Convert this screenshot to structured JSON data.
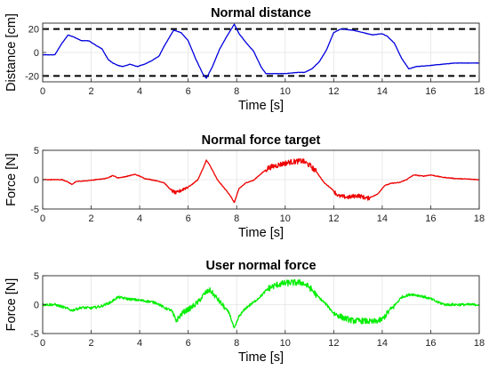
{
  "chart_data": [
    {
      "type": "line",
      "title": "Normal distance",
      "xlabel": "Time [s]",
      "ylabel": "Distance [cm]",
      "xlim": [
        0,
        18
      ],
      "ylim": [
        -25,
        25
      ],
      "xticks": [
        0,
        2,
        4,
        6,
        8,
        10,
        12,
        14,
        16,
        18
      ],
      "yticks": [
        -20,
        0,
        20
      ],
      "grid": true,
      "reference_lines": [
        20,
        -20
      ],
      "color": "#0000dd",
      "noise": 0.15,
      "noisy_ranges": [],
      "series": [
        {
          "x": [
            0,
            0.5,
            0.8,
            1.05,
            1.3,
            1.6,
            1.9,
            2.2,
            2.45,
            2.7,
            2.9,
            3.1,
            3.3,
            3.6,
            3.9,
            4.2,
            4.5,
            4.8,
            5.0,
            5.2,
            5.4,
            5.7,
            6.0,
            6.3,
            6.6,
            6.75,
            7.0,
            7.3,
            7.6,
            7.9,
            8.1,
            8.4,
            8.7,
            9.0,
            9.2,
            9.5,
            10.0,
            10.5,
            10.8,
            11.1,
            11.4,
            11.7,
            12.0,
            12.3,
            12.8,
            13.2,
            13.6,
            14.0,
            14.2,
            14.5,
            14.8,
            15.1,
            15.4,
            16.0,
            16.5,
            17.0,
            18.0
          ],
          "y": [
            -2,
            -2,
            8,
            15,
            13,
            10,
            10,
            6,
            3,
            -6,
            -9,
            -11,
            -12,
            -10,
            -12,
            -10,
            -7,
            -3,
            5,
            12,
            19,
            17,
            10,
            -5,
            -18,
            -22,
            -12,
            3,
            14,
            24,
            16,
            8,
            1,
            -12,
            -18,
            -18,
            -18,
            -17,
            -17,
            -14,
            -8,
            2,
            17,
            20,
            19,
            17,
            15,
            16,
            14,
            8,
            -5,
            -14,
            -12,
            -11,
            -10,
            -9,
            -9
          ]
        }
      ]
    },
    {
      "type": "line",
      "title": "Normal force target",
      "xlabel": "Time [s]",
      "ylabel": "Force [N]",
      "xlim": [
        0,
        18
      ],
      "ylim": [
        -5,
        5
      ],
      "xticks": [
        0,
        2,
        4,
        6,
        8,
        10,
        12,
        14,
        16,
        18
      ],
      "yticks": [
        -5,
        0,
        5
      ],
      "grid": true,
      "reference_lines": [],
      "color": "#ee0000",
      "noise": 0.06,
      "noisy_ranges": [
        [
          5.3,
          6.0,
          0.3
        ],
        [
          9.2,
          11.3,
          0.45
        ],
        [
          12.0,
          13.5,
          0.35
        ]
      ],
      "series": [
        {
          "x": [
            0,
            0.8,
            1.0,
            1.2,
            1.4,
            1.8,
            2.2,
            2.6,
            2.9,
            3.1,
            3.4,
            3.8,
            4.0,
            4.2,
            4.6,
            5.0,
            5.3,
            5.5,
            5.8,
            6.1,
            6.4,
            6.6,
            6.75,
            6.9,
            7.2,
            7.5,
            7.7,
            7.9,
            8.1,
            8.4,
            8.7,
            9.0,
            9.3,
            9.7,
            10.2,
            10.7,
            11.0,
            11.3,
            11.6,
            11.9,
            12.2,
            12.6,
            13.0,
            13.4,
            13.8,
            14.1,
            14.4,
            14.7,
            15.0,
            15.3,
            15.7,
            16.0,
            16.5,
            17.0,
            18.0
          ],
          "y": [
            0,
            0,
            -0.3,
            -0.8,
            -0.3,
            -0.2,
            0,
            0.2,
            0.7,
            0.3,
            0.5,
            0.9,
            0.6,
            0.2,
            -0.1,
            -0.5,
            -1.8,
            -2.3,
            -1.6,
            -1.0,
            0,
            1.8,
            3.3,
            2.4,
            0,
            -1.5,
            -2.5,
            -3.9,
            -1.5,
            -0.5,
            -0.1,
            1.0,
            2.0,
            2.5,
            3.0,
            3.2,
            2.5,
            1.3,
            -0.5,
            -1.5,
            -2.8,
            -3.0,
            -2.7,
            -3.2,
            -2.5,
            -1.0,
            -0.6,
            -0.5,
            0,
            0.8,
            0.6,
            0.8,
            0.4,
            0.2,
            0
          ]
        }
      ]
    },
    {
      "type": "line",
      "title": "User normal force",
      "xlabel": "Time [s]",
      "ylabel": "Force [N]",
      "xlim": [
        0,
        18
      ],
      "ylim": [
        -5,
        5
      ],
      "xticks": [
        0,
        2,
        4,
        6,
        8,
        10,
        12,
        14,
        16,
        18
      ],
      "yticks": [
        -5,
        0,
        5
      ],
      "grid": true,
      "reference_lines": [],
      "color": "#00ee00",
      "noise": 0.22,
      "noisy_ranges": [
        [
          5.3,
          7.5,
          0.45
        ],
        [
          9.2,
          11.3,
          0.55
        ],
        [
          12.0,
          14.5,
          0.5
        ]
      ],
      "series": [
        {
          "x": [
            0,
            0.5,
            0.9,
            1.2,
            1.6,
            2.0,
            2.4,
            2.8,
            3.1,
            3.5,
            3.9,
            4.3,
            4.7,
            5.0,
            5.3,
            5.5,
            5.8,
            6.1,
            6.4,
            6.7,
            6.9,
            7.1,
            7.4,
            7.7,
            7.9,
            8.1,
            8.4,
            8.7,
            9.0,
            9.3,
            9.7,
            10.2,
            10.7,
            11.0,
            11.3,
            11.7,
            12.0,
            12.4,
            12.8,
            13.2,
            13.6,
            14.0,
            14.2,
            14.5,
            14.8,
            15.2,
            15.6,
            16.0,
            16.3,
            16.6,
            17.0,
            18.0
          ],
          "y": [
            0,
            0,
            -0.5,
            -1.0,
            -0.5,
            -0.6,
            -0.3,
            0.4,
            1.3,
            1.0,
            0.8,
            0.6,
            0.3,
            -0.5,
            -1.0,
            -2.8,
            -1.3,
            -0.6,
            0.4,
            2.0,
            2.5,
            1.5,
            0,
            -1.5,
            -4.2,
            -2.0,
            -0.5,
            0.4,
            1.5,
            2.8,
            3.5,
            3.8,
            3.8,
            3.0,
            1.6,
            0,
            -1.5,
            -2.3,
            -2.8,
            -2.8,
            -3.0,
            -2.6,
            -1.5,
            -0.2,
            1.3,
            1.8,
            1.5,
            1.0,
            0.4,
            0,
            0,
            0
          ]
        }
      ]
    }
  ]
}
